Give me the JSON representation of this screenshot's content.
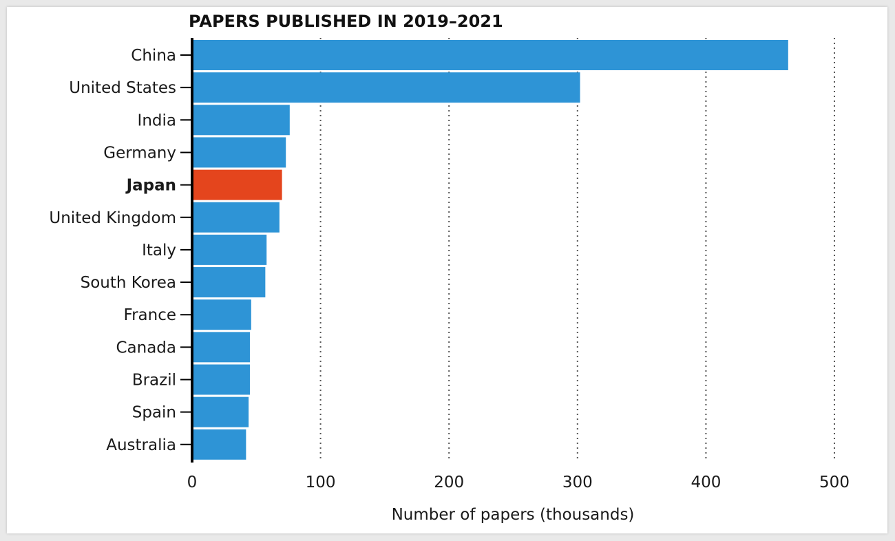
{
  "chart_data": {
    "type": "bar",
    "orientation": "horizontal",
    "title": "PAPERS PUBLISHED IN 2019–2021",
    "xlabel": "Number of papers (thousands)",
    "ylabel": "",
    "categories": [
      "China",
      "United States",
      "India",
      "Germany",
      "Japan",
      "United Kingdom",
      "Italy",
      "South Korea",
      "France",
      "Canada",
      "Brazil",
      "Spain",
      "Australia"
    ],
    "values": [
      464,
      302,
      76,
      73,
      70,
      68,
      58,
      57,
      46,
      45,
      45,
      44,
      42
    ],
    "highlight": "Japan",
    "xlim": [
      0,
      500
    ],
    "xticks": [
      0,
      100,
      200,
      300,
      400,
      500
    ],
    "grid": "vertical dotted",
    "colors": {
      "bar": "#2e94d6",
      "highlight": "#e4451d",
      "axis": "#000000",
      "grid": "#555555"
    }
  }
}
